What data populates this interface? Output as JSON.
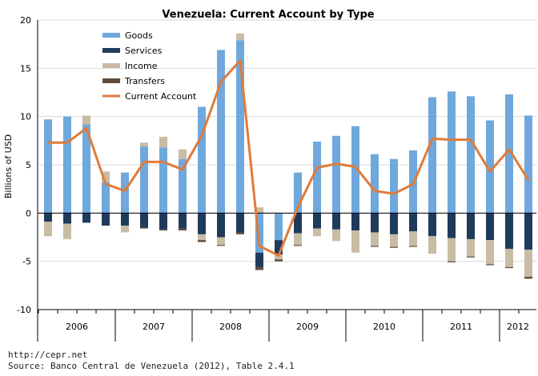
{
  "chart_data": {
    "type": "bar",
    "title": "Venezuela: Current Account by Type",
    "ylabel": "Billions of USD",
    "xlabel": "",
    "ylim": [
      -10,
      20
    ],
    "yticks": [
      -10,
      -5,
      0,
      5,
      10,
      15,
      20
    ],
    "stacked": true,
    "grid": true,
    "legend_position": "top-left",
    "year_labels": [
      "2006",
      "2007",
      "2008",
      "2009",
      "2010",
      "2011",
      "2012"
    ],
    "quarters_per_year": 4,
    "series": [
      {
        "name": "Goods",
        "type": "bar",
        "color": "#6fa8dc",
        "values": [
          9.7,
          10.0,
          9.2,
          3.2,
          4.2,
          6.9,
          6.8,
          5.6,
          11.0,
          16.9,
          17.9,
          -4.1,
          -2.8,
          4.2,
          7.4,
          8.0,
          9.0,
          6.1,
          5.6,
          6.5,
          12.0,
          12.6,
          12.1,
          9.6,
          12.3,
          10.1
        ]
      },
      {
        "name": "Services",
        "type": "bar",
        "color": "#1f3b5c",
        "values": [
          -0.9,
          -1.1,
          -1.0,
          -1.3,
          -1.3,
          -1.5,
          -1.7,
          -1.6,
          -2.2,
          -2.5,
          -2.0,
          -1.5,
          -1.5,
          -2.1,
          -1.6,
          -1.7,
          -1.8,
          -2.0,
          -2.2,
          -1.9,
          -2.4,
          -2.6,
          -2.7,
          -2.8,
          -3.7,
          -3.8
        ]
      },
      {
        "name": "Income",
        "type": "bar",
        "color": "#c8bca4",
        "values": [
          -1.5,
          -1.6,
          0.9,
          1.1,
          -0.7,
          0.4,
          1.1,
          1.0,
          -0.6,
          -0.8,
          0.7,
          0.6,
          -0.5,
          -1.2,
          -0.8,
          -1.2,
          -2.3,
          -1.4,
          -1.3,
          -1.5,
          -1.8,
          -2.4,
          -1.8,
          -2.5,
          -1.9,
          -2.8
        ]
      },
      {
        "name": "Transfers",
        "type": "bar",
        "color": "#5e4c3a",
        "values": [
          0.0,
          0.0,
          0.0,
          0.0,
          0.0,
          -0.1,
          -0.1,
          -0.2,
          -0.2,
          -0.1,
          -0.2,
          -0.3,
          -0.2,
          -0.1,
          0.0,
          0.0,
          0.0,
          -0.1,
          -0.1,
          -0.1,
          0.0,
          -0.1,
          -0.1,
          -0.1,
          -0.1,
          -0.2
        ]
      },
      {
        "name": "Current Account",
        "type": "line",
        "color": "#e07b39",
        "values": [
          7.3,
          7.3,
          8.8,
          3.0,
          2.3,
          5.3,
          5.3,
          4.5,
          8.0,
          13.6,
          15.8,
          -3.4,
          -4.4,
          0.6,
          4.7,
          5.1,
          4.8,
          2.3,
          2.0,
          3.0,
          7.7,
          7.6,
          7.6,
          4.3,
          6.6,
          3.4
        ]
      }
    ]
  },
  "footer": {
    "url": "http://cepr.net",
    "source": "Source: Banco Central de Venezuela (2012), Table 2.4.1"
  }
}
